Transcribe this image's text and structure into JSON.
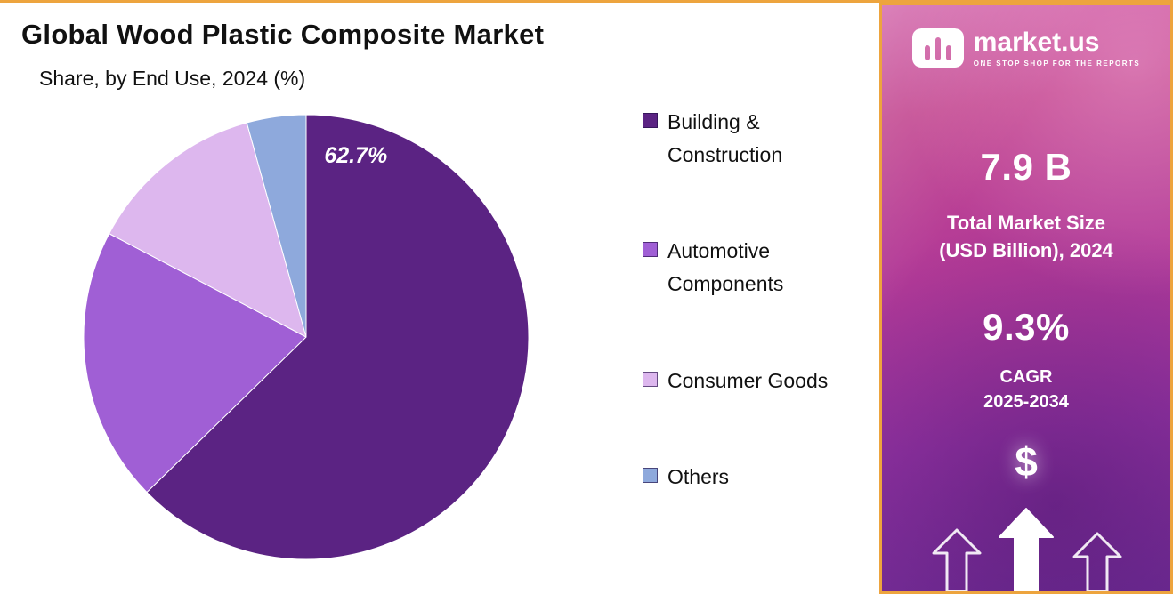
{
  "chart_data": {
    "type": "pie",
    "title": "Global Wood Plastic Composite Market",
    "subtitle": "Share, by End Use, 2024 (%)",
    "unit": "%",
    "legend_position": "right",
    "start_angle_deg": 0,
    "direction": "clockwise",
    "segments": [
      {
        "label": "Building & Construction",
        "value": 62.7,
        "color": "#5b2383"
      },
      {
        "label": "Automotive Components",
        "value": 20.0,
        "color": "#a05fd5"
      },
      {
        "label": "Consumer Goods",
        "value": 13.0,
        "color": "#ddb7ee"
      },
      {
        "label": "Others",
        "value": 4.3,
        "color": "#8ea9dc"
      }
    ],
    "data_label": {
      "text": "62.7%",
      "segment": "Building & Construction"
    }
  },
  "sidebar": {
    "brand": "market.us",
    "tagline": "ONE STOP SHOP FOR THE REPORTS",
    "market_size_value": "7.9 B",
    "market_size_label_line1": "Total Market Size",
    "market_size_label_line2": "(USD Billion), 2024",
    "cagr_value": "9.3%",
    "cagr_label_line1": "CAGR",
    "cagr_label_line2": "2025-2034",
    "dollar_symbol": "$",
    "accent_border_color": "#eda43e"
  }
}
